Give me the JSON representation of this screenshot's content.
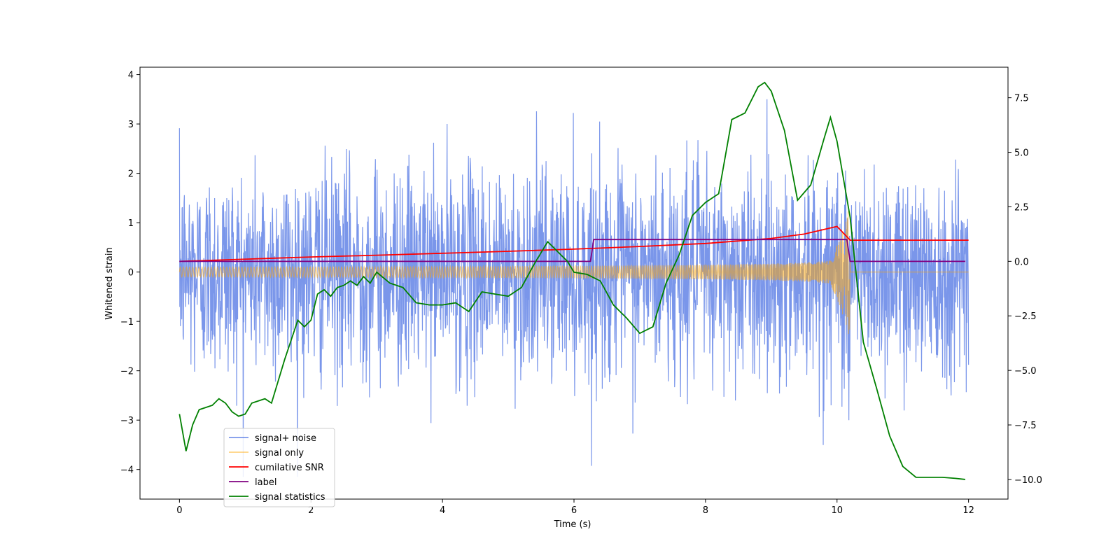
{
  "chart_data": {
    "type": "line",
    "xlabel": "Time (s)",
    "ylabel": "Whitened strain",
    "xlim": [
      -0.6,
      12.6
    ],
    "ylim": [
      -4.6,
      4.15
    ],
    "y2lim": [
      -10.9,
      8.9
    ],
    "x_ticks": [
      0,
      2,
      4,
      6,
      8,
      10,
      12
    ],
    "y_ticks": [
      -4,
      -3,
      -2,
      -1,
      0,
      1,
      2,
      3,
      4
    ],
    "y2_ticks": [
      -10.0,
      -7.5,
      -5.0,
      -2.5,
      0.0,
      2.5,
      5.0,
      7.5
    ],
    "x_tick_labels": [
      "0",
      "2",
      "4",
      "6",
      "8",
      "10",
      "12"
    ],
    "y_tick_labels": [
      "−4",
      "−3",
      "−2",
      "−1",
      "0",
      "1",
      "2",
      "3",
      "4"
    ],
    "y2_tick_labels": [
      "−10.0",
      "−7.5",
      "−5.0",
      "−2.5",
      "0.0",
      "2.5",
      "5.0",
      "7.5"
    ],
    "legend_position": "lower-left",
    "grid": false,
    "series": [
      {
        "name": "signal+ noise",
        "color": "#4169e1",
        "axis": "left",
        "note_values": "noisy whitened strain, roughly unit-variance Gaussian noise plus chirp, spanning about -4.2 to 3.8",
        "x_range": [
          0,
          12
        ],
        "peaks": {
          "max": 3.78,
          "min": -4.15
        }
      },
      {
        "name": "signal only",
        "color": "#ffa500",
        "axis": "left",
        "chirp": {
          "t_start": 0,
          "t_merge": 10.2,
          "amp_start": 0.1,
          "amp_peak": 1.5,
          "t_end": 12
        }
      },
      {
        "name": "cumilative SNR",
        "color": "#ff0000",
        "axis": "right",
        "x": [
          0,
          1,
          2,
          3,
          4,
          5,
          6,
          7,
          8,
          9,
          9.5,
          10,
          10.2,
          12
        ],
        "y": [
          0.0,
          0.1,
          0.2,
          0.28,
          0.37,
          0.46,
          0.56,
          0.68,
          0.82,
          1.05,
          1.25,
          1.6,
          0.97,
          0.97
        ]
      },
      {
        "name": "label",
        "color": "#800080",
        "axis": "right",
        "x": [
          0,
          6.25,
          6.3,
          10.15,
          10.2,
          11.95
        ],
        "y": [
          0.0,
          0.0,
          1.0,
          1.0,
          0.0,
          0.0
        ]
      },
      {
        "name": "signal statistics",
        "color": "#008000",
        "axis": "right",
        "x": [
          0,
          0.1,
          0.2,
          0.3,
          0.4,
          0.5,
          0.6,
          0.7,
          0.8,
          0.9,
          1.0,
          1.1,
          1.2,
          1.3,
          1.4,
          1.5,
          1.6,
          1.7,
          1.8,
          1.9,
          2.0,
          2.1,
          2.2,
          2.3,
          2.4,
          2.5,
          2.6,
          2.7,
          2.8,
          2.9,
          3.0,
          3.2,
          3.4,
          3.6,
          3.8,
          4.0,
          4.2,
          4.4,
          4.6,
          4.8,
          5.0,
          5.2,
          5.4,
          5.6,
          5.7,
          5.8,
          5.9,
          6.0,
          6.2,
          6.4,
          6.6,
          6.8,
          7.0,
          7.2,
          7.4,
          7.6,
          7.8,
          8.0,
          8.2,
          8.4,
          8.6,
          8.8,
          8.9,
          9.0,
          9.2,
          9.4,
          9.6,
          9.8,
          9.9,
          10.0,
          10.2,
          10.4,
          10.6,
          10.8,
          11.0,
          11.2,
          11.4,
          11.6,
          11.8,
          11.95
        ],
        "y": [
          -7.0,
          -8.7,
          -7.5,
          -6.8,
          -6.7,
          -6.6,
          -6.3,
          -6.5,
          -6.9,
          -7.1,
          -7.0,
          -6.5,
          -6.4,
          -6.3,
          -6.5,
          -5.5,
          -4.5,
          -3.6,
          -2.7,
          -3.0,
          -2.7,
          -1.5,
          -1.3,
          -1.6,
          -1.2,
          -1.1,
          -0.9,
          -1.1,
          -0.7,
          -1.0,
          -0.5,
          -1.0,
          -1.2,
          -1.9,
          -2.0,
          -2.0,
          -1.9,
          -2.3,
          -1.4,
          -1.5,
          -1.6,
          -1.2,
          -0.1,
          0.9,
          0.6,
          0.3,
          0.0,
          -0.5,
          -0.6,
          -0.9,
          -2.0,
          -2.6,
          -3.3,
          -3.0,
          -1.0,
          0.3,
          2.1,
          2.7,
          3.1,
          6.5,
          6.8,
          8.0,
          8.2,
          7.8,
          6.0,
          2.8,
          3.5,
          5.6,
          6.6,
          5.5,
          2.0,
          -3.7,
          -5.8,
          -8.0,
          -9.4,
          -9.9,
          -9.9,
          -9.9,
          -9.95,
          -10.0
        ]
      }
    ]
  }
}
